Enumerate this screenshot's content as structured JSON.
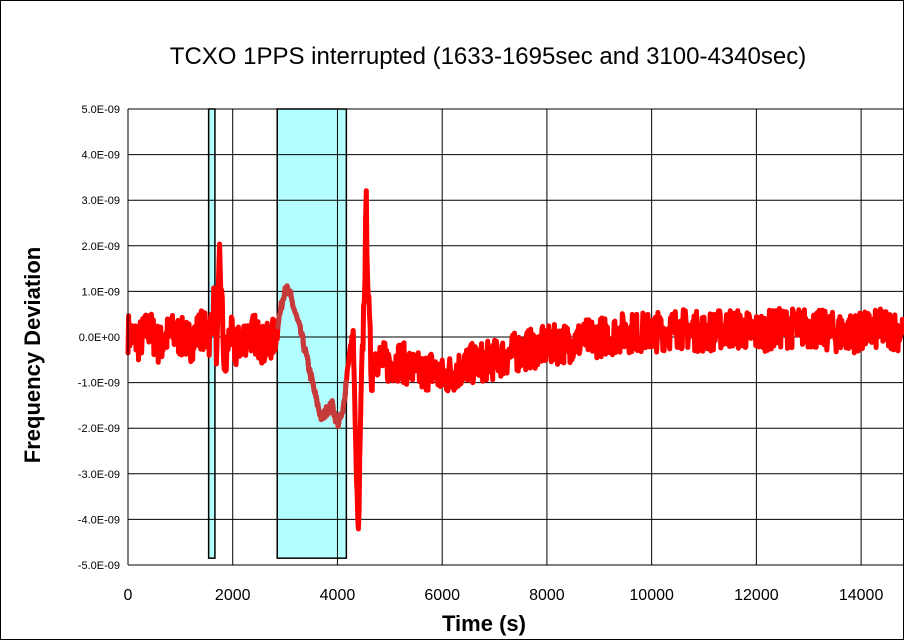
{
  "chart_data": {
    "type": "line",
    "title": "TCXO 1PPS interrupted  (1633-1695sec and  3100-4340sec)",
    "xlabel": "Time (s)",
    "ylabel": "Frequency Deviation",
    "xlim": [
      0,
      14800
    ],
    "ylim": [
      -5e-09,
      5e-09
    ],
    "x_ticks": [
      0,
      2000,
      4000,
      6000,
      8000,
      10000,
      12000,
      14000
    ],
    "x_tick_labels": [
      "0",
      "2000",
      "4000",
      "6000",
      "8000",
      "10000",
      "12000",
      "14000"
    ],
    "y_ticks": [
      5e-09,
      4e-09,
      3e-09,
      2e-09,
      1e-09,
      0,
      -1e-09,
      -2e-09,
      -3e-09,
      -4e-09,
      -5e-09
    ],
    "y_tick_labels": [
      "5.0E-09",
      "4.0E-09",
      "3.0E-09",
      "2.0E-09",
      "1.0E-09",
      "0.0E+00",
      "-1.0E-09",
      "-2.0E-09",
      "-3.0E-09",
      "-4.0E-09",
      "-5.0E-09"
    ],
    "grid": true,
    "shaded_regions": [
      {
        "x_start": 1540,
        "x_end": 1660,
        "y_start": -4.85e-09,
        "y_end": 5e-09,
        "color": "#b3ffff"
      },
      {
        "x_start": 2850,
        "x_end": 4170,
        "y_start": -4.85e-09,
        "y_end": 5e-09,
        "color": "#b3ffff"
      }
    ],
    "series": [
      {
        "color": "#ff0000",
        "x": [
          0,
          200,
          400,
          600,
          800,
          1000,
          1200,
          1400,
          1550,
          1650,
          1700,
          1750,
          1800,
          1850,
          1900,
          1950,
          2050,
          2200,
          2400,
          2600,
          2800,
          2900,
          3000,
          3100,
          3200,
          3300,
          3400,
          3500,
          3600,
          3700,
          3800,
          3900,
          4000,
          4100,
          4200,
          4300,
          4350,
          4400,
          4450,
          4500,
          4550,
          4600,
          4650,
          4700,
          4800,
          5000,
          5200,
          5400,
          5600,
          5800,
          6000,
          6500,
          7000,
          7500,
          8000,
          8500,
          9000,
          9500,
          10000,
          10500,
          11000,
          11500,
          12000,
          12500,
          13000,
          13500,
          14000,
          14500,
          14800
        ],
        "y": [
          1e-10,
          -1e-10,
          2e-10,
          -2e-10,
          1e-10,
          0.0,
          -1e-10,
          2e-10,
          0.0,
          8e-10,
          -5e-10,
          1.8e-09,
          5e-10,
          -1e-09,
          -2e-10,
          1e-10,
          -3e-10,
          0.0,
          1e-10,
          -2e-10,
          0.0,
          5e-10,
          1.1e-09,
          9e-10,
          5e-10,
          1e-10,
          -4e-10,
          -9e-10,
          -1.4e-09,
          -1.8e-09,
          -1.6e-09,
          -1.5e-09,
          -1.9e-09,
          -1.7e-09,
          -6e-10,
          1e-10,
          -2.5e-09,
          -4.5e-09,
          -1.5e-09,
          5e-10,
          2.8e-09,
          5e-10,
          -9e-10,
          -3e-10,
          -5e-10,
          -6e-10,
          -5e-10,
          -7e-10,
          -8e-10,
          -7e-10,
          -9e-10,
          -6e-10,
          -5e-10,
          -3e-10,
          -2e-10,
          -1e-10,
          0.0,
          1e-10,
          1e-10,
          2e-10,
          1e-10,
          2e-10,
          1e-10,
          2e-10,
          2e-10,
          1e-10,
          1e-10,
          2e-10,
          1e-10
        ],
        "noise_amplitude": 4.5e-10
      }
    ]
  }
}
